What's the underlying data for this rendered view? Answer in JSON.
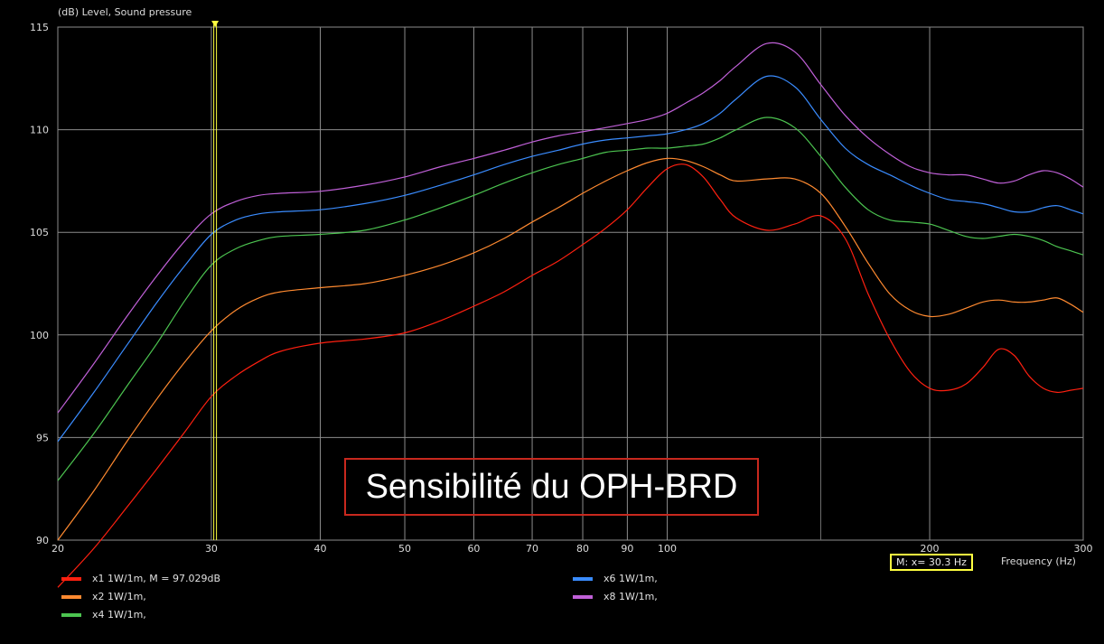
{
  "chart_data": {
    "type": "line",
    "title": "Sensibilité du OPH-BRD",
    "ylabel": "(dB)  Level, Sound pressure",
    "xlabel": "Frequency  (Hz)",
    "x_scale": "log",
    "xlim": [
      20,
      300
    ],
    "ylim": [
      90,
      115
    ],
    "grid": true,
    "y_ticks": [
      90,
      95,
      100,
      105,
      110,
      115
    ],
    "x_ticks": [
      20,
      30,
      40,
      50,
      60,
      70,
      80,
      90,
      100,
      200,
      300
    ],
    "x_tick_labels": [
      "20",
      "30",
      "40",
      "50",
      "60",
      "70",
      "80",
      "90",
      "100",
      "200",
      "300"
    ],
    "x_minor_ticks": [
      150
    ],
    "marker": {
      "x": 30.3,
      "readout": "M:  x= 30.3 Hz"
    },
    "series": [
      {
        "name": "x1 1W/1m, M = 97.029dB",
        "color": "#ff2010",
        "x": [
          20,
          22,
          24,
          26,
          28,
          30,
          32,
          34,
          36,
          40,
          45,
          50,
          55,
          60,
          65,
          70,
          75,
          80,
          85,
          90,
          95,
          100,
          105,
          110,
          115,
          120,
          130,
          140,
          150,
          160,
          170,
          180,
          190,
          200,
          210,
          220,
          230,
          240,
          250,
          260,
          270,
          280,
          290,
          300
        ],
        "y": [
          87.7,
          89.6,
          91.6,
          93.5,
          95.3,
          97.0,
          98.0,
          98.7,
          99.2,
          99.6,
          99.8,
          100.1,
          100.7,
          101.4,
          102.1,
          102.9,
          103.6,
          104.4,
          105.2,
          106.1,
          107.2,
          108.1,
          108.3,
          107.7,
          106.6,
          105.7,
          105.1,
          105.4,
          105.8,
          104.7,
          102.0,
          99.8,
          98.2,
          97.4,
          97.3,
          97.6,
          98.4,
          99.3,
          99.0,
          98.0,
          97.4,
          97.2,
          97.3,
          97.4
        ]
      },
      {
        "name": "x2 1W/1m,",
        "color": "#ff8a30",
        "x": [
          20,
          22,
          24,
          26,
          28,
          30,
          32,
          34,
          36,
          40,
          45,
          50,
          55,
          60,
          65,
          70,
          75,
          80,
          85,
          90,
          95,
          100,
          105,
          110,
          115,
          120,
          130,
          140,
          150,
          160,
          170,
          180,
          190,
          200,
          210,
          220,
          230,
          240,
          250,
          260,
          270,
          280,
          290,
          300
        ],
        "y": [
          90.0,
          92.4,
          94.8,
          96.9,
          98.7,
          100.2,
          101.2,
          101.8,
          102.1,
          102.3,
          102.5,
          102.9,
          103.4,
          104.0,
          104.7,
          105.5,
          106.2,
          106.9,
          107.5,
          108.0,
          108.4,
          108.6,
          108.5,
          108.2,
          107.8,
          107.5,
          107.6,
          107.6,
          106.9,
          105.3,
          103.5,
          102.0,
          101.2,
          100.9,
          101.0,
          101.3,
          101.6,
          101.7,
          101.6,
          101.6,
          101.7,
          101.8,
          101.5,
          101.1
        ]
      },
      {
        "name": "x4 1W/1m,",
        "color": "#4cc450",
        "x": [
          20,
          22,
          24,
          26,
          28,
          30,
          32,
          34,
          36,
          40,
          45,
          50,
          55,
          60,
          65,
          70,
          75,
          80,
          85,
          90,
          95,
          100,
          105,
          110,
          115,
          120,
          130,
          140,
          150,
          160,
          170,
          180,
          190,
          200,
          210,
          220,
          230,
          240,
          250,
          260,
          270,
          280,
          290,
          300
        ],
        "y": [
          92.9,
          95.2,
          97.5,
          99.6,
          101.7,
          103.4,
          104.2,
          104.6,
          104.8,
          104.9,
          105.1,
          105.6,
          106.2,
          106.8,
          107.4,
          107.9,
          108.3,
          108.6,
          108.9,
          109.0,
          109.1,
          109.1,
          109.2,
          109.3,
          109.6,
          110.0,
          110.6,
          110.1,
          108.7,
          107.2,
          106.1,
          105.6,
          105.5,
          105.4,
          105.1,
          104.8,
          104.7,
          104.8,
          104.9,
          104.8,
          104.6,
          104.3,
          104.1,
          103.9
        ]
      },
      {
        "name": "x6 1W/1m,",
        "color": "#3a8cff",
        "x": [
          20,
          22,
          24,
          26,
          28,
          30,
          32,
          34,
          36,
          40,
          45,
          50,
          55,
          60,
          65,
          70,
          75,
          80,
          85,
          90,
          95,
          100,
          105,
          110,
          115,
          120,
          130,
          140,
          150,
          160,
          170,
          180,
          190,
          200,
          210,
          220,
          230,
          240,
          250,
          260,
          270,
          280,
          290,
          300
        ],
        "y": [
          94.8,
          97.2,
          99.5,
          101.6,
          103.4,
          104.9,
          105.6,
          105.9,
          106.0,
          106.1,
          106.4,
          106.8,
          107.3,
          107.8,
          108.3,
          108.7,
          109.0,
          109.3,
          109.5,
          109.6,
          109.7,
          109.8,
          110.0,
          110.3,
          110.8,
          111.5,
          112.6,
          112.1,
          110.5,
          109.1,
          108.3,
          107.8,
          107.3,
          106.9,
          106.6,
          106.5,
          106.4,
          106.2,
          106.0,
          106.0,
          106.2,
          106.3,
          106.1,
          105.9
        ]
      },
      {
        "name": "x8 1W/1m,",
        "color": "#c060d8",
        "x": [
          20,
          22,
          24,
          26,
          28,
          30,
          32,
          34,
          36,
          40,
          45,
          50,
          55,
          60,
          65,
          70,
          75,
          80,
          85,
          90,
          95,
          100,
          105,
          110,
          115,
          120,
          130,
          140,
          150,
          160,
          170,
          180,
          190,
          200,
          210,
          220,
          230,
          240,
          250,
          260,
          270,
          280,
          290,
          300
        ],
        "y": [
          96.2,
          98.6,
          100.9,
          102.9,
          104.6,
          105.9,
          106.5,
          106.8,
          106.9,
          107.0,
          107.3,
          107.7,
          108.2,
          108.6,
          109.0,
          109.4,
          109.7,
          109.9,
          110.1,
          110.3,
          110.5,
          110.8,
          111.3,
          111.8,
          112.4,
          113.1,
          114.2,
          113.8,
          112.2,
          110.7,
          109.6,
          108.8,
          108.2,
          107.9,
          107.8,
          107.8,
          107.6,
          107.4,
          107.5,
          107.8,
          108.0,
          107.9,
          107.6,
          107.2
        ]
      }
    ]
  }
}
